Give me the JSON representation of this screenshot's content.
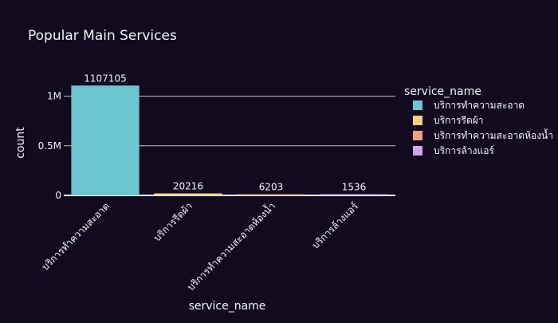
{
  "chart_data": {
    "type": "bar",
    "title": "Popular Main Services",
    "xlabel": "service_name",
    "ylabel": "count",
    "categories": [
      "บริการทำความสะอาด",
      "บริการรีดผ้า",
      "บริการทำความสะอาดห้องน้ำ",
      "บริการล้างแอร์"
    ],
    "values": [
      1107105,
      20216,
      6203,
      1536
    ],
    "colors": [
      "#6cc6cf",
      "#f5cf7c",
      "#f29e7f",
      "#d0a6ea"
    ],
    "ylim": [
      0,
      1165374
    ],
    "yticks": [
      {
        "value": 0,
        "label": "0"
      },
      {
        "value": 500000,
        "label": "0.5M"
      },
      {
        "value": 1000000,
        "label": "1M"
      }
    ],
    "legend": {
      "title": "service_name",
      "position": "right",
      "entries": [
        "บริการทำความสะอาด",
        "บริการรีดผ้า",
        "บริการทำความสะอาดห้องน้ำ",
        "บริการล้างแอร์"
      ]
    },
    "grid": true,
    "background": "#120a1f"
  }
}
